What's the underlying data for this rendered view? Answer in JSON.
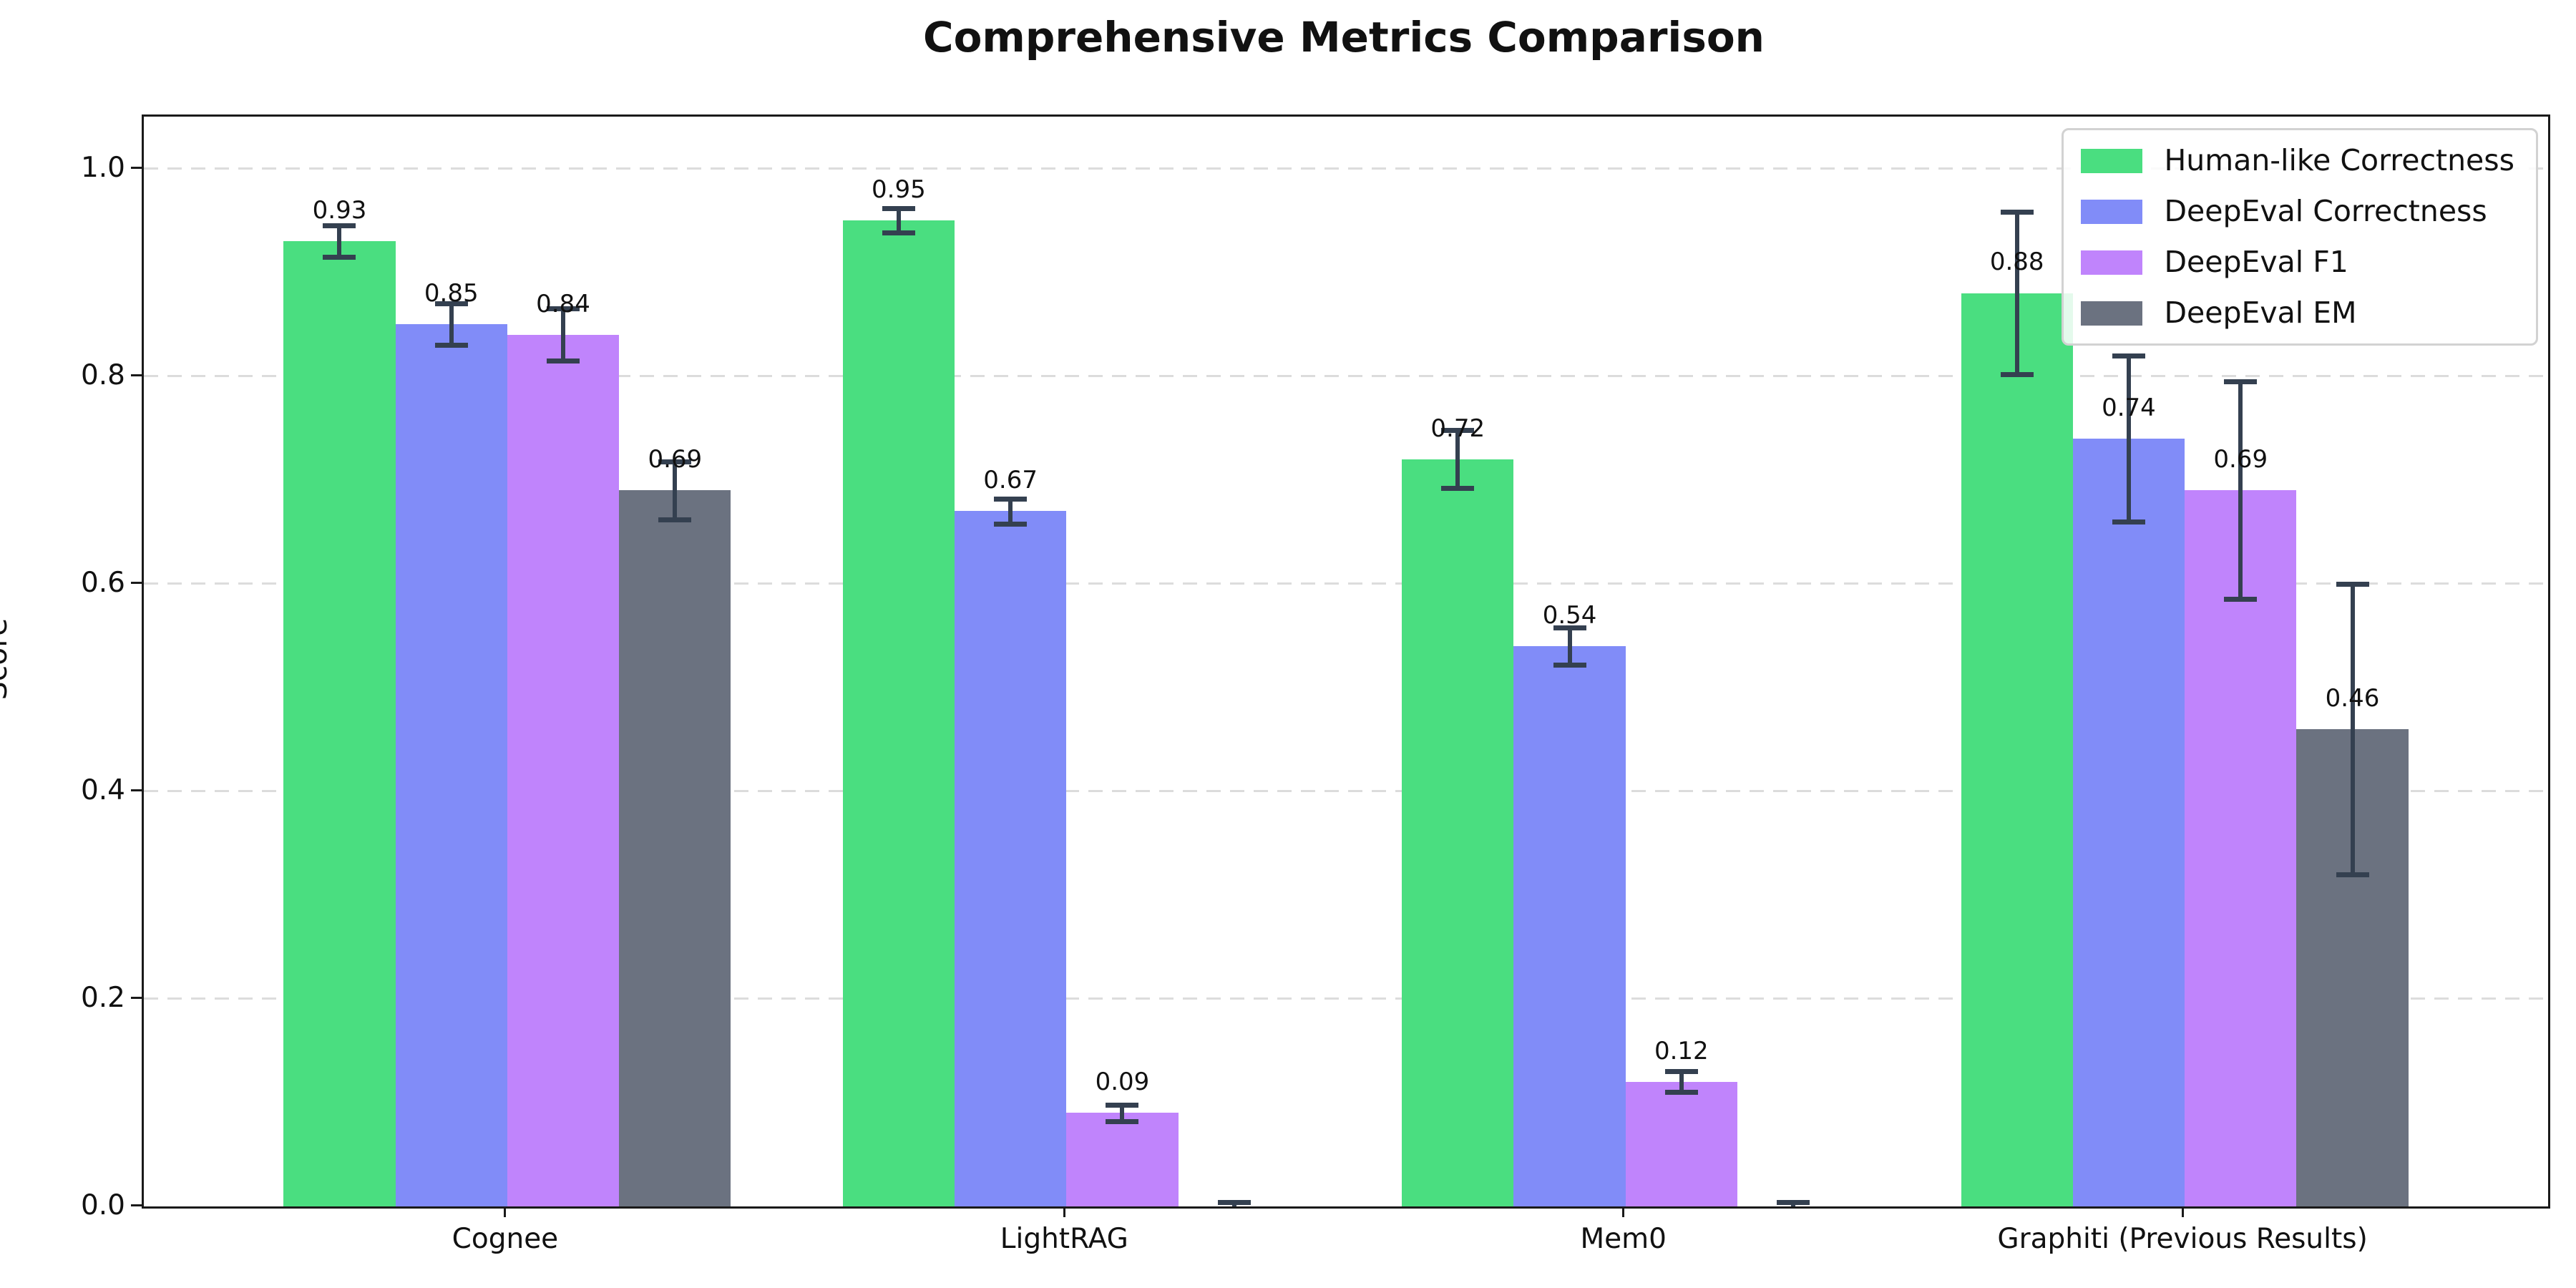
{
  "chart_data": {
    "type": "bar",
    "title": "Comprehensive Metrics Comparison",
    "xlabel": "",
    "ylabel": "Score",
    "categories": [
      "Cognee",
      "LightRAG",
      "Mem0",
      "Graphiti (Previous Results)"
    ],
    "series": [
      {
        "name": "Human-like Correctness",
        "color": "#4ade80",
        "values": [
          0.93,
          0.95,
          0.72,
          0.88
        ],
        "errors": [
          0.015,
          0.012,
          0.028,
          0.078
        ],
        "labels": [
          "0.93",
          "0.95",
          "0.72",
          "0.88"
        ]
      },
      {
        "name": "DeepEval Correctness",
        "color": "#818cf8",
        "values": [
          0.85,
          0.67,
          0.54,
          0.74
        ],
        "errors": [
          0.02,
          0.012,
          0.018,
          0.08
        ],
        "labels": [
          "0.85",
          "0.67",
          "0.54",
          "0.74"
        ]
      },
      {
        "name": "DeepEval F1",
        "color": "#c084fc",
        "values": [
          0.84,
          0.09,
          0.12,
          0.69
        ],
        "errors": [
          0.025,
          0.008,
          0.01,
          0.105
        ],
        "labels": [
          "0.84",
          "0.09",
          "0.12",
          "0.69"
        ]
      },
      {
        "name": "DeepEval EM",
        "color": "#6b7280",
        "values": [
          0.69,
          0.0,
          0.0,
          0.46
        ],
        "errors": [
          0.028,
          0.004,
          0.004,
          0.14
        ],
        "labels": [
          "0.69",
          null,
          null,
          "0.46"
        ]
      }
    ],
    "ylim": [
      0,
      1.05
    ],
    "yticks": [
      {
        "v": 0.0,
        "label": "0.0"
      },
      {
        "v": 0.2,
        "label": "0.2"
      },
      {
        "v": 0.4,
        "label": "0.4"
      },
      {
        "v": 0.6,
        "label": "0.6"
      },
      {
        "v": 0.8,
        "label": "0.8"
      },
      {
        "v": 1.0,
        "label": "1.0"
      }
    ],
    "grid": "horizontal-dashed",
    "legend_position": "upper-right",
    "colors": {
      "errorbar": "#344050",
      "grid": "#dcdcdc",
      "spine": "#1a1a1a",
      "text": "#111111",
      "legend_border": "#d2d2d2"
    }
  }
}
